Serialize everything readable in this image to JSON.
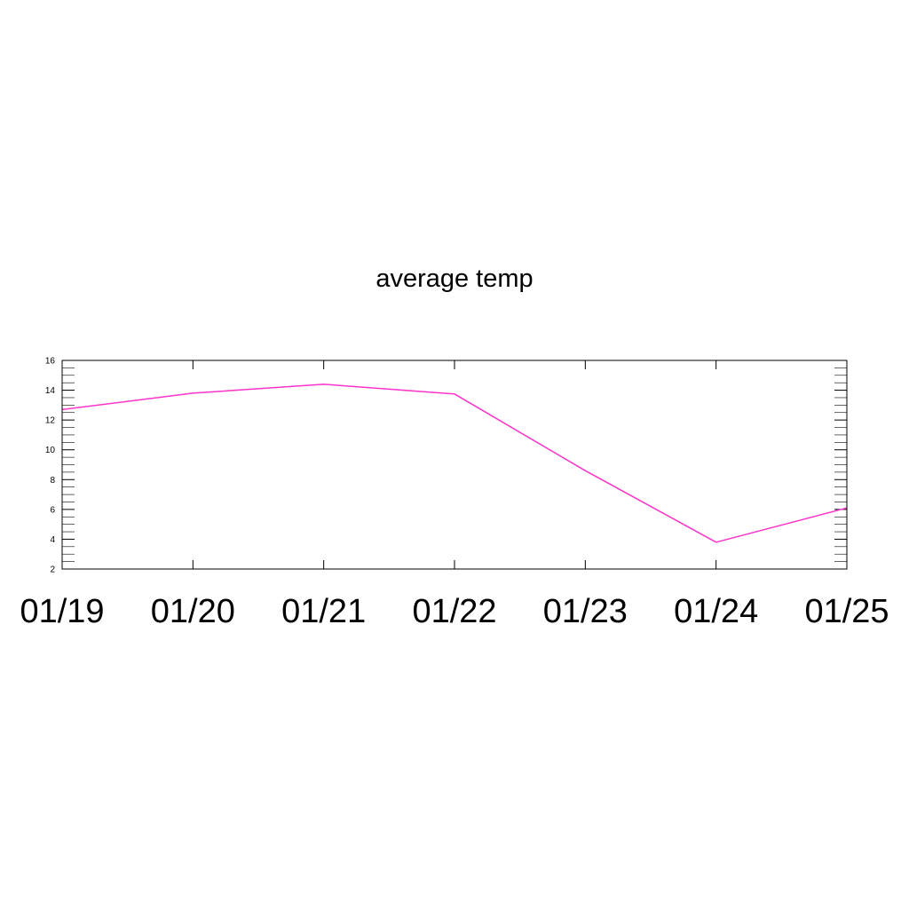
{
  "chart_data": {
    "type": "line",
    "title": "average temp",
    "xlabel": "",
    "ylabel": "",
    "x": [
      "01/19",
      "01/20",
      "01/21",
      "01/22",
      "01/23",
      "01/24",
      "01/25"
    ],
    "x_tick_labels": [
      "01/19",
      "01/20",
      "01/21",
      "01/22",
      "01/23",
      "01/24",
      "01/25"
    ],
    "y_ticks": [
      2,
      4,
      6,
      8,
      10,
      12,
      14,
      16
    ],
    "y_tick_labels": [
      "2",
      "4",
      "6",
      "8",
      "10",
      "12",
      "14",
      "16"
    ],
    "ylim": [
      2,
      16
    ],
    "grid": false,
    "series": [
      {
        "values": [
          12.7,
          13.8,
          14.4,
          13.75,
          8.6,
          3.8,
          6.1
        ],
        "color": "#ff33cc"
      }
    ]
  }
}
